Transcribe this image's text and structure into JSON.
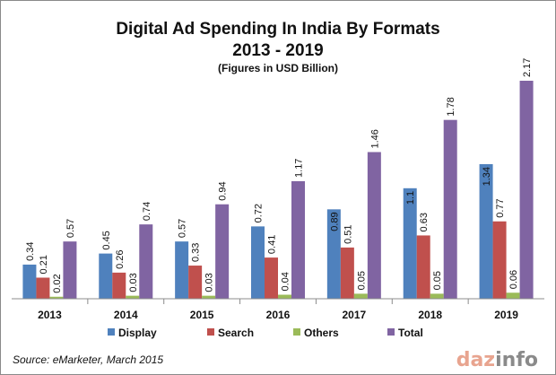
{
  "chart_data": {
    "type": "bar",
    "title": "Digital Ad Spending In India By Formats",
    "title_line2": "2013 - 2019",
    "subtitle": "(Figures in USD Billion)",
    "categories": [
      "2013",
      "2014",
      "2015",
      "2016",
      "2017",
      "2018",
      "2019"
    ],
    "series": [
      {
        "name": "Display",
        "color": "#4f81bd",
        "values": [
          0.34,
          0.45,
          0.57,
          0.72,
          0.89,
          1.1,
          1.34
        ],
        "labels": [
          "0.34",
          "0.45",
          "0.57",
          "0.72",
          "0.89",
          "1.1",
          "1.34"
        ]
      },
      {
        "name": "Search",
        "color": "#c0504d",
        "values": [
          0.21,
          0.26,
          0.33,
          0.41,
          0.51,
          0.63,
          0.77
        ],
        "labels": [
          "0.21",
          "0.26",
          "0.33",
          "0.41",
          "0.51",
          "0.63",
          "0.77"
        ]
      },
      {
        "name": "Others",
        "color": "#9bbb59",
        "values": [
          0.02,
          0.03,
          0.03,
          0.04,
          0.05,
          0.05,
          0.06
        ],
        "labels": [
          "0.02",
          "0.03",
          "0.03",
          "0.04",
          "0.05",
          "0.05",
          "0.06"
        ]
      },
      {
        "name": "Total",
        "color": "#8064a2",
        "values": [
          0.57,
          0.74,
          0.94,
          1.17,
          1.46,
          1.78,
          2.17
        ],
        "labels": [
          "0.57",
          "0.74",
          "0.94",
          "1.17",
          "1.46",
          "1.78",
          "2.17"
        ]
      }
    ],
    "ylim": [
      0,
      2.17
    ],
    "grid": false,
    "legend_position": "bottom",
    "white_label_series": [
      "Display"
    ],
    "white_label_categories": [
      "2017",
      "2018",
      "2019"
    ]
  },
  "footer": {
    "source": "Source: eMarketer, March 2015"
  },
  "logo": {
    "text_part1": "daz",
    "text_part2": "info",
    "color1": "#e8a48f",
    "color2": "#8a8a8a"
  }
}
